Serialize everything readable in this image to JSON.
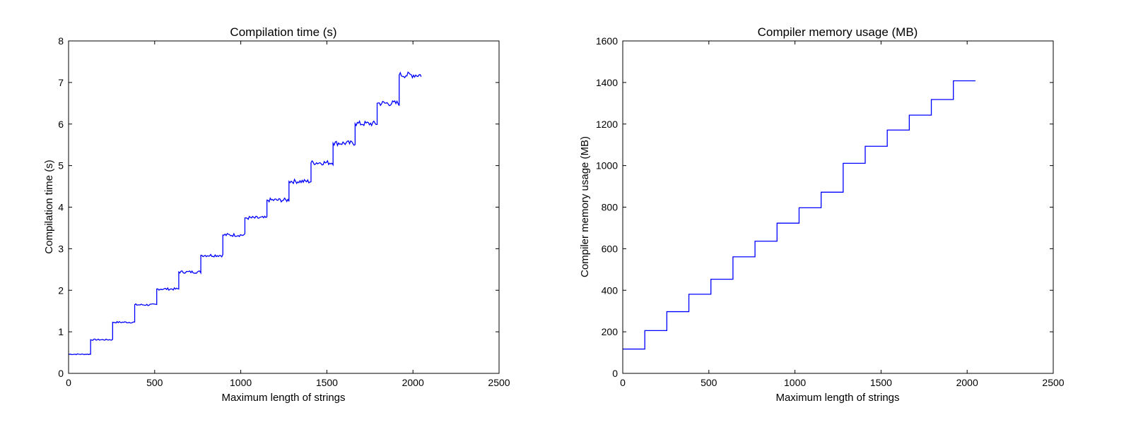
{
  "chart_data": [
    {
      "type": "line",
      "title": "Compilation time (s)",
      "xlabel": "Maximum length of strings",
      "ylabel": "Compilation time (s)",
      "xlim": [
        0,
        2500
      ],
      "ylim": [
        0,
        8
      ],
      "xticks": [
        0,
        500,
        1000,
        1500,
        2000,
        2500
      ],
      "yticks": [
        0,
        1,
        2,
        3,
        4,
        5,
        6,
        7,
        8
      ],
      "grid": false,
      "color": "#0000ff",
      "step_edges": [
        0,
        128,
        256,
        384,
        512,
        640,
        768,
        896,
        1024,
        1152,
        1280,
        1408,
        1536,
        1664,
        1792,
        1920,
        2048
      ],
      "values": [
        0.46,
        0.81,
        1.23,
        1.65,
        2.03,
        2.44,
        2.84,
        3.33,
        3.74,
        4.17,
        4.62,
        5.07,
        5.54,
        6.01,
        6.5,
        7.18
      ]
    },
    {
      "type": "line",
      "title": "Compiler memory usage (MB)",
      "xlabel": "Maximum length of strings",
      "ylabel": "Compiler memory usage (MB)",
      "xlim": [
        0,
        2500
      ],
      "ylim": [
        0,
        1600
      ],
      "xticks": [
        0,
        500,
        1000,
        1500,
        2000,
        2500
      ],
      "yticks": [
        0,
        200,
        400,
        600,
        800,
        1000,
        1200,
        1400,
        1600
      ],
      "grid": false,
      "color": "#0000ff",
      "step_edges": [
        0,
        128,
        256,
        384,
        512,
        640,
        768,
        896,
        1024,
        1152,
        1280,
        1408,
        1536,
        1664,
        1792,
        1920,
        2048
      ],
      "values": [
        117,
        206,
        297,
        381,
        453,
        561,
        636,
        723,
        797,
        872,
        1011,
        1093,
        1171,
        1243,
        1318,
        1408
      ]
    }
  ]
}
